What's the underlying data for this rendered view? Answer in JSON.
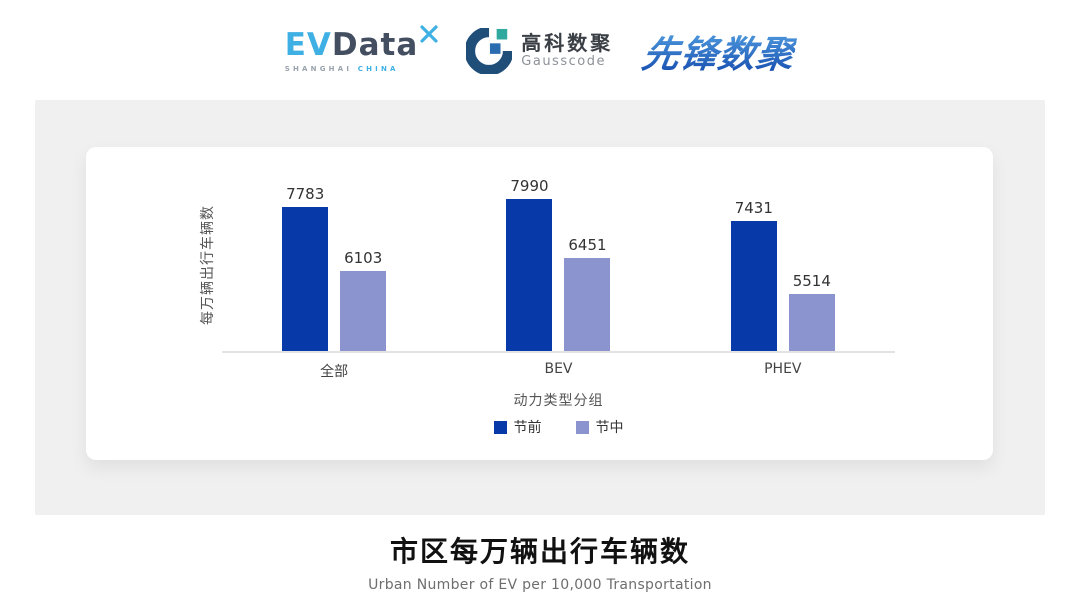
{
  "header": {
    "evdata": {
      "ev": "EV",
      "data": "Data",
      "sub_left": "SHANGHAI",
      "sub_right": "CHINA"
    },
    "gausscode": {
      "cn": "高科数聚",
      "en": "Gausscode"
    },
    "xianfeng": "先锋数聚"
  },
  "colors": {
    "series_pre": "#0839a8",
    "series_mid": "#8b94ce",
    "panel_bg": "#f0f0f1",
    "axis_line": "#e3e3e3",
    "evdata_blue": "#3fb0e4",
    "evdata_dark": "#434e60",
    "gauss_ring": "#1f4e79",
    "gauss_teal": "#2fa99e",
    "gauss_square": "#2b6cb0",
    "xianfeng_blue": "#2a6ccc"
  },
  "chart_data": {
    "type": "bar",
    "categories": [
      "全部",
      "BEV",
      "PHEV"
    ],
    "series": [
      {
        "name": "节前",
        "color": "#0839a8",
        "values": [
          7783,
          7990,
          7431
        ]
      },
      {
        "name": "节中",
        "color": "#8b94ce",
        "values": [
          6103,
          6451,
          5514
        ]
      }
    ],
    "ylabel": "每万辆出行车辆数",
    "xlabel": "动力类型分组",
    "ylim": [
      4000,
      8500
    ],
    "grid": false,
    "legend_position": "bottom",
    "title": "市区每万辆出行车辆数",
    "subtitle": "Urban Number of EV per 10,000 Transportation"
  }
}
